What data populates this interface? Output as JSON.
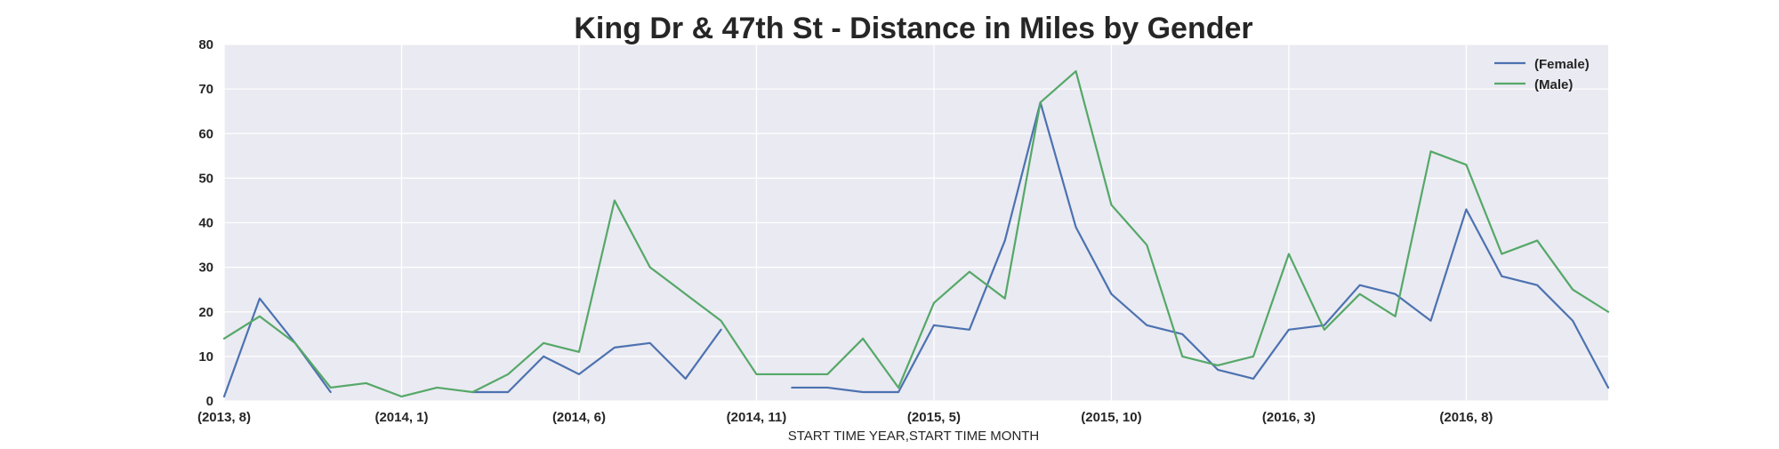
{
  "chart_data": {
    "type": "line",
    "title": "King Dr & 47th St - Distance in Miles by Gender",
    "xlabel": "START TIME YEAR,START TIME MONTH",
    "ylabel": "",
    "ylim": [
      0,
      80
    ],
    "yticks": [
      "0",
      "10",
      "20",
      "30",
      "40",
      "50",
      "60",
      "70",
      "80"
    ],
    "xticks": [
      {
        "index": 0,
        "label": "(2013, 8)"
      },
      {
        "index": 5,
        "label": "(2014, 1)"
      },
      {
        "index": 10,
        "label": "(2014, 6)"
      },
      {
        "index": 15,
        "label": "(2014, 11)"
      },
      {
        "index": 20,
        "label": "(2015, 5)"
      },
      {
        "index": 25,
        "label": "(2015, 10)"
      },
      {
        "index": 30,
        "label": "(2016, 3)"
      },
      {
        "index": 35,
        "label": "(2016, 8)"
      }
    ],
    "x_count": 40,
    "grid": true,
    "legend_position": "top-right",
    "series": [
      {
        "name": "(Female)",
        "color": "#4c72b0",
        "values": [
          1,
          23,
          13,
          2,
          null,
          null,
          null,
          2,
          2,
          10,
          6,
          12,
          13,
          5,
          16,
          null,
          3,
          3,
          2,
          2,
          17,
          16,
          36,
          67,
          39,
          24,
          17,
          15,
          7,
          5,
          16,
          17,
          26,
          24,
          18,
          43,
          28,
          26,
          18,
          3
        ]
      },
      {
        "name": "(Male)",
        "color": "#55a868",
        "values": [
          14,
          19,
          13,
          3,
          4,
          1,
          3,
          2,
          6,
          13,
          11,
          45,
          30,
          24,
          18,
          6,
          6,
          6,
          14,
          3,
          22,
          29,
          23,
          67,
          74,
          44,
          35,
          10,
          8,
          10,
          33,
          16,
          24,
          19,
          56,
          53,
          33,
          36,
          25,
          20
        ]
      }
    ]
  }
}
